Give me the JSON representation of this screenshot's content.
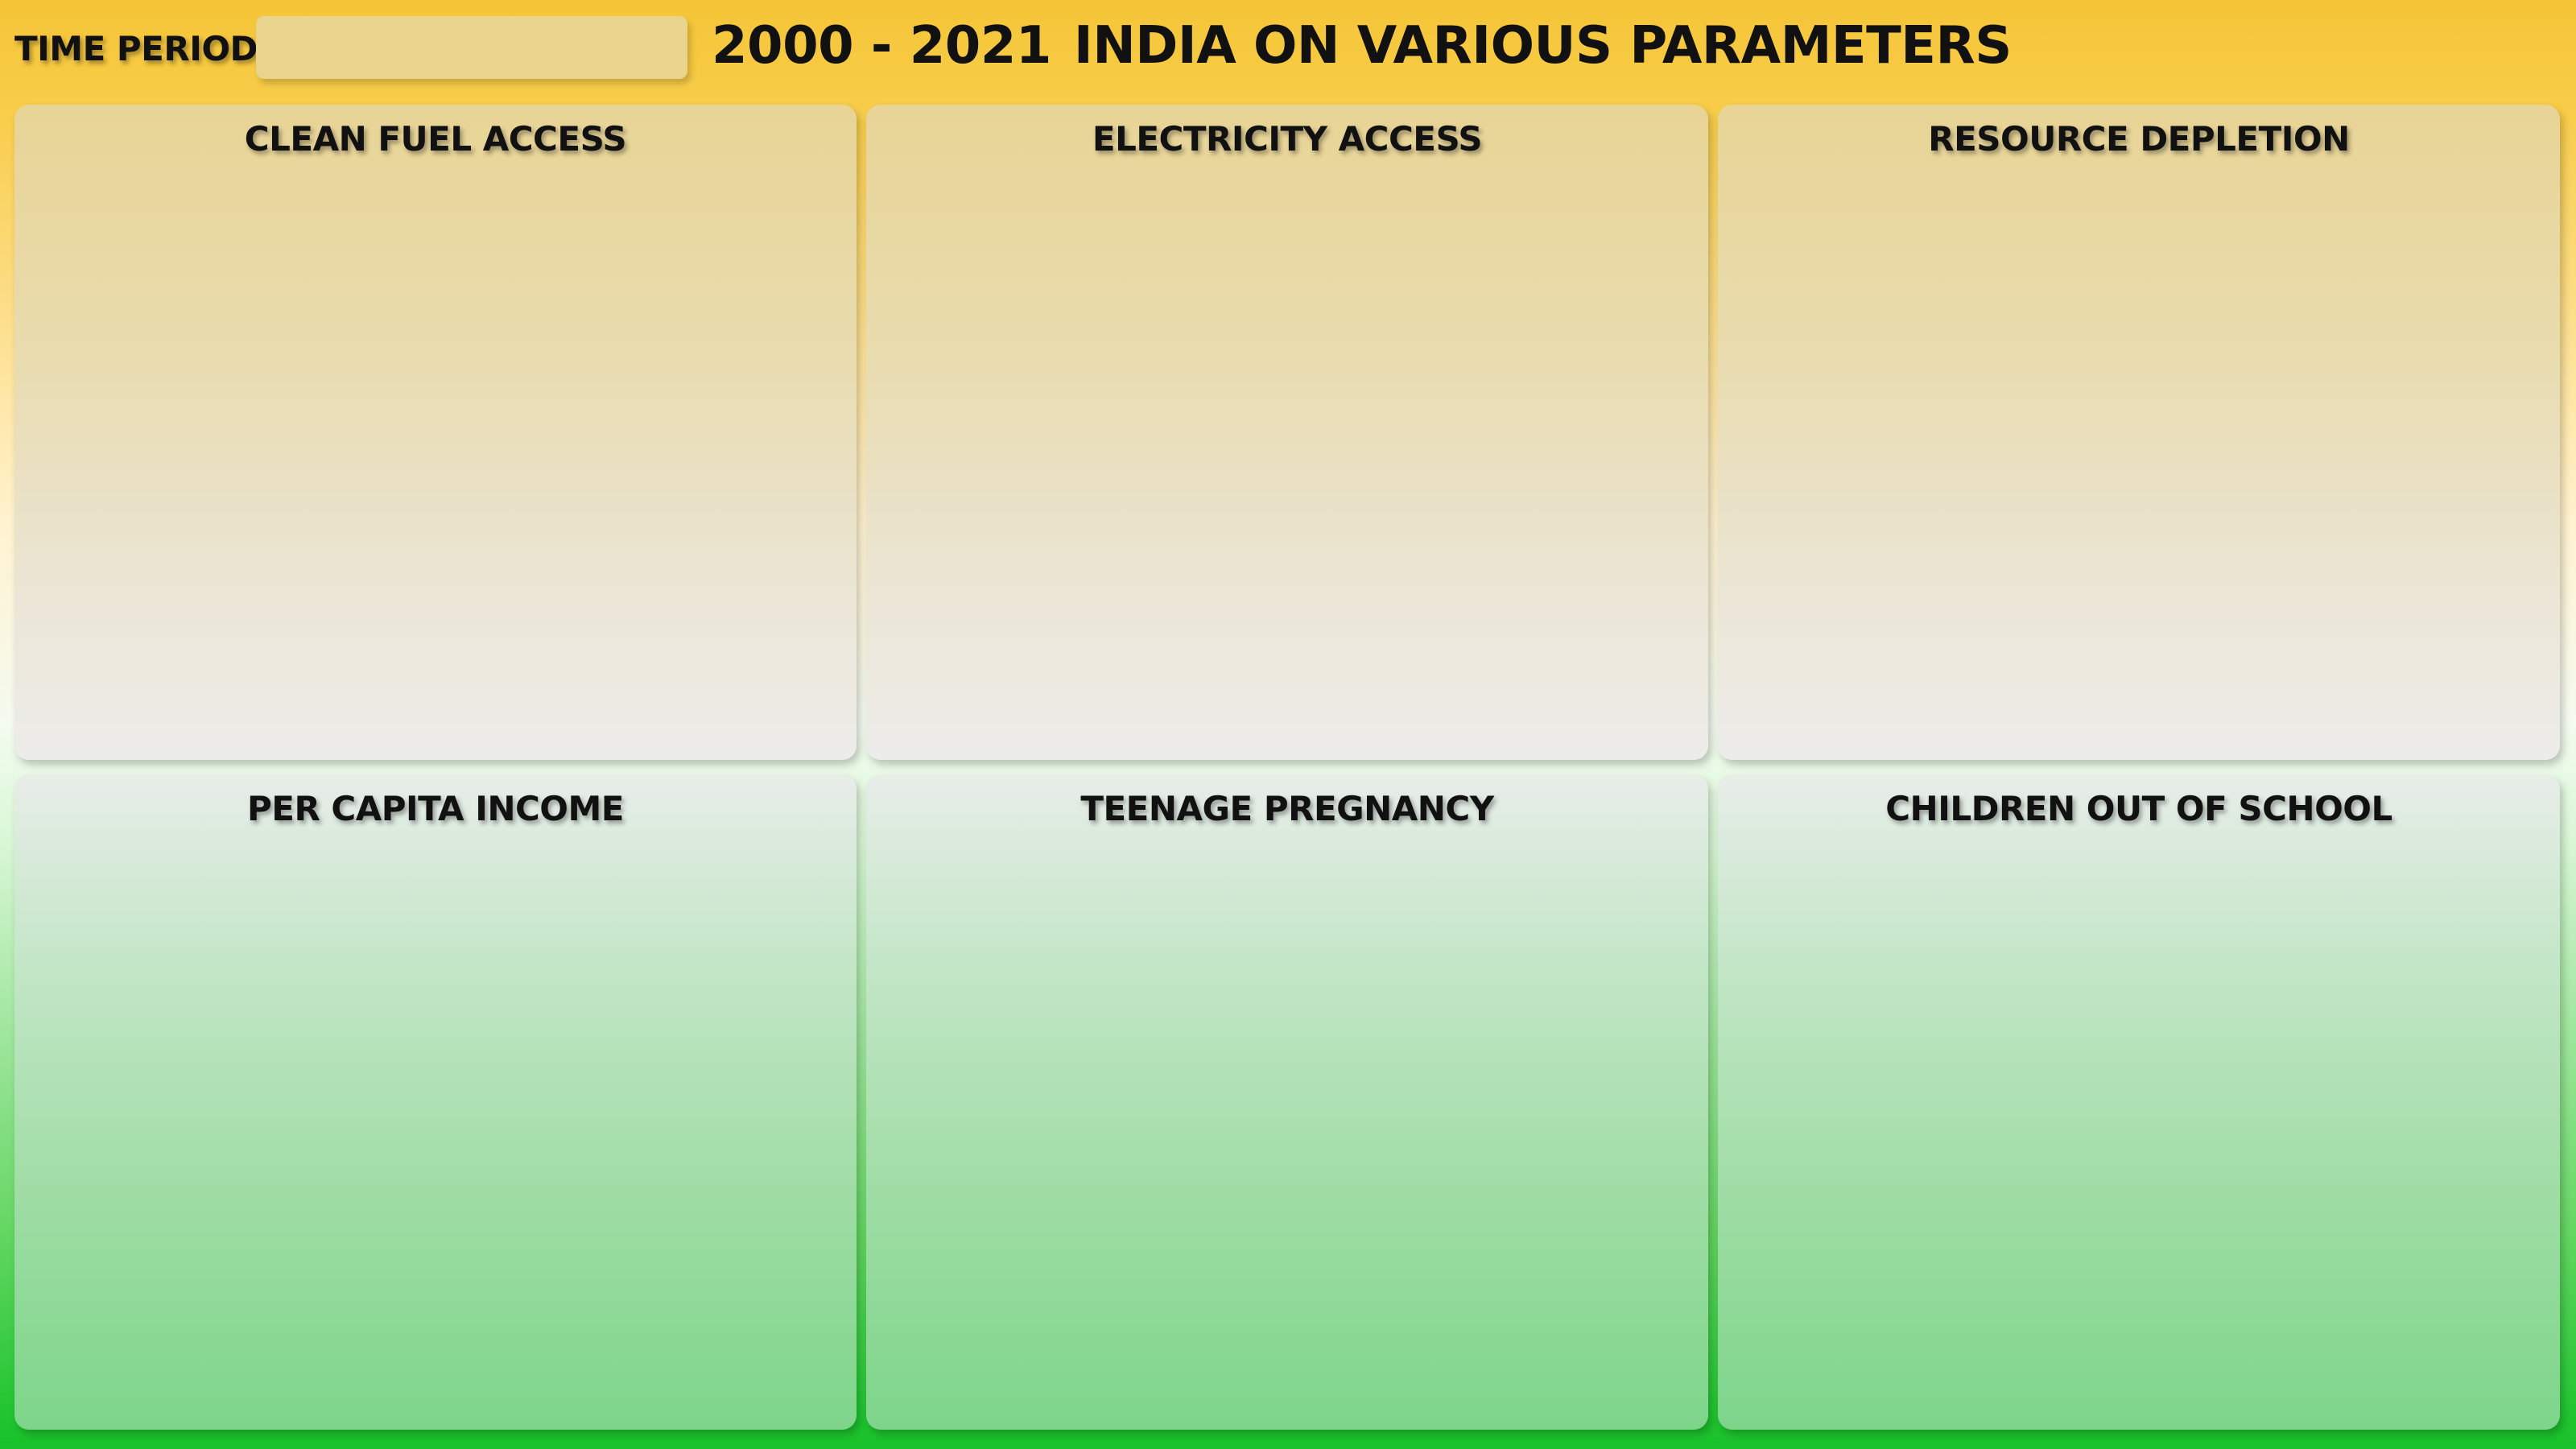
{
  "header": {
    "time_label": "TIME PERIOD",
    "time_input_value": "",
    "title_years": "2000 - 2021",
    "title_text": "INDIA ON VARIOUS PARAMETERS"
  },
  "panels": [
    {
      "title": "CLEAN FUEL ACCESS"
    },
    {
      "title": "ELECTRICITY ACCESS"
    },
    {
      "title": "RESOURCE DEPLETION"
    },
    {
      "title": "PER CAPITA INCOME"
    },
    {
      "title": "TEENAGE PREGNANCY"
    },
    {
      "title": "CHILDREN OUT OF SCHOOL"
    }
  ],
  "colors": {
    "background_top": "#f5c537",
    "background_bottom": "#18c229",
    "input_fill": "#e8d48c",
    "panel_top_fill": "#e8d495",
    "panel_bottom_fill": "#7dd58a"
  }
}
